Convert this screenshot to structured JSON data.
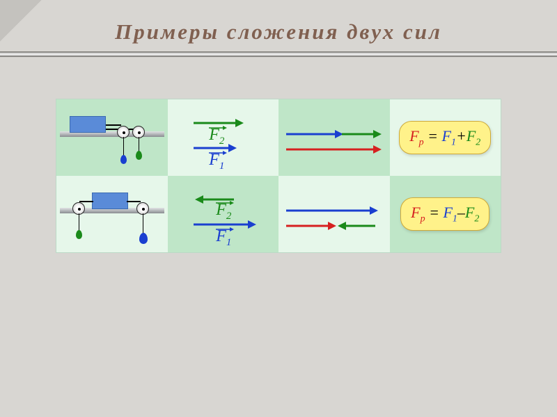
{
  "title": "Примеры  сложения  двух  сил",
  "colors": {
    "bg": "#d8d6d2",
    "cell_dark": "#bfe6c8",
    "cell_light": "#e6f7ea",
    "blue": "#1a3fd0",
    "green": "#1a8a1a",
    "red": "#d62020",
    "formula_bg": "#fff28a",
    "title_color": "#806050"
  },
  "rows": [
    {
      "id": "same-dir",
      "pulley": {
        "layout": "both-right",
        "bob1_color": "#1a3fd0",
        "bob2_color": "#1a8a1a"
      },
      "f_labels": [
        {
          "name": "F2",
          "color": "#1a8a1a",
          "dir": "right",
          "len": 70,
          "y": 28
        },
        {
          "name": "F1",
          "color": "#1a3fd0",
          "dir": "right",
          "len": 60,
          "y": 58
        }
      ],
      "sum_arrows": [
        {
          "color": "#1a3fd0",
          "dir": "right",
          "len": 80,
          "y": 22
        },
        {
          "color": "#1a8a1a",
          "dir": "right",
          "len": 55,
          "y": 22,
          "offset": 80
        },
        {
          "color": "#d62020",
          "dir": "right",
          "len": 135,
          "y": 42
        }
      ],
      "formula": {
        "Fp": "F",
        "p_sub": "p",
        "op": "+",
        "lhs": "F1",
        "rhs": "F2"
      }
    },
    {
      "id": "opposite-dir",
      "pulley": {
        "layout": "left-and-right",
        "bob1_color": "#1a8a1a",
        "bob2_color": "#1a3fd0"
      },
      "f_labels": [
        {
          "name": "F2",
          "color": "#1a8a1a",
          "dir": "left",
          "len": 52,
          "y": 28
        },
        {
          "name": "F1",
          "color": "#1a3fd0",
          "dir": "right",
          "len": 88,
          "y": 58
        }
      ],
      "sum_arrows": [
        {
          "color": "#1a3fd0",
          "dir": "right",
          "len": 130,
          "y": 22
        },
        {
          "color": "#d62020",
          "dir": "right",
          "len": 70,
          "y": 42
        },
        {
          "color": "#1a8a1a",
          "dir": "left",
          "len": 50,
          "y": 42,
          "offset": 76
        }
      ],
      "formula": {
        "Fp": "F",
        "p_sub": "p",
        "op": "–",
        "lhs": "F1",
        "rhs": "F2"
      }
    }
  ]
}
